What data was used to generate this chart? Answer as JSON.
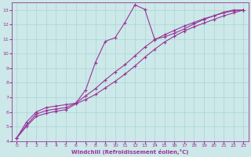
{
  "bg_color": "#cce8e8",
  "line_color": "#993399",
  "grid_color": "#aad4d4",
  "xlabel": "Windchill (Refroidissement éolien,°C)",
  "xlabel_color": "#993399",
  "tick_color": "#993399",
  "xlim": [
    -0.5,
    23.5
  ],
  "ylim": [
    4,
    13.5
  ],
  "xticks": [
    0,
    1,
    2,
    3,
    4,
    5,
    6,
    7,
    8,
    9,
    10,
    11,
    12,
    13,
    14,
    15,
    16,
    17,
    18,
    19,
    20,
    21,
    22,
    23
  ],
  "yticks": [
    4,
    5,
    6,
    7,
    8,
    9,
    10,
    11,
    12,
    13
  ],
  "line1_x": [
    0,
    1,
    2,
    3,
    4,
    5,
    6,
    7,
    8,
    9,
    10,
    11,
    12,
    13,
    14,
    15,
    16,
    17,
    18,
    19,
    20,
    21,
    22,
    23
  ],
  "line1_y": [
    4.2,
    5.3,
    6.0,
    6.3,
    6.4,
    6.5,
    6.6,
    7.5,
    9.4,
    10.85,
    11.1,
    12.15,
    13.35,
    13.05,
    11.0,
    11.15,
    11.4,
    11.7,
    12.05,
    12.35,
    12.6,
    12.85,
    13.0,
    13.0
  ],
  "line2_x": [
    0,
    1,
    2,
    3,
    4,
    5,
    6,
    7,
    8,
    9,
    10,
    11,
    12,
    13,
    14,
    15,
    16,
    17,
    18,
    19,
    20,
    21,
    22,
    23
  ],
  "line2_y": [
    4.2,
    5.0,
    5.7,
    5.9,
    6.05,
    6.15,
    6.55,
    6.85,
    7.2,
    7.65,
    8.1,
    8.6,
    9.15,
    9.75,
    10.3,
    10.8,
    11.2,
    11.55,
    11.85,
    12.1,
    12.35,
    12.6,
    12.8,
    13.0
  ],
  "line3_x": [
    0,
    1,
    2,
    3,
    4,
    5,
    6,
    7,
    8,
    9,
    10,
    11,
    12,
    13,
    14,
    15,
    16,
    17,
    18,
    19,
    20,
    21,
    22,
    23
  ],
  "line3_y": [
    4.2,
    5.1,
    5.85,
    6.1,
    6.2,
    6.3,
    6.6,
    7.1,
    7.6,
    8.2,
    8.75,
    9.25,
    9.85,
    10.45,
    10.95,
    11.3,
    11.6,
    11.9,
    12.15,
    12.4,
    12.6,
    12.8,
    12.95,
    13.0
  ]
}
